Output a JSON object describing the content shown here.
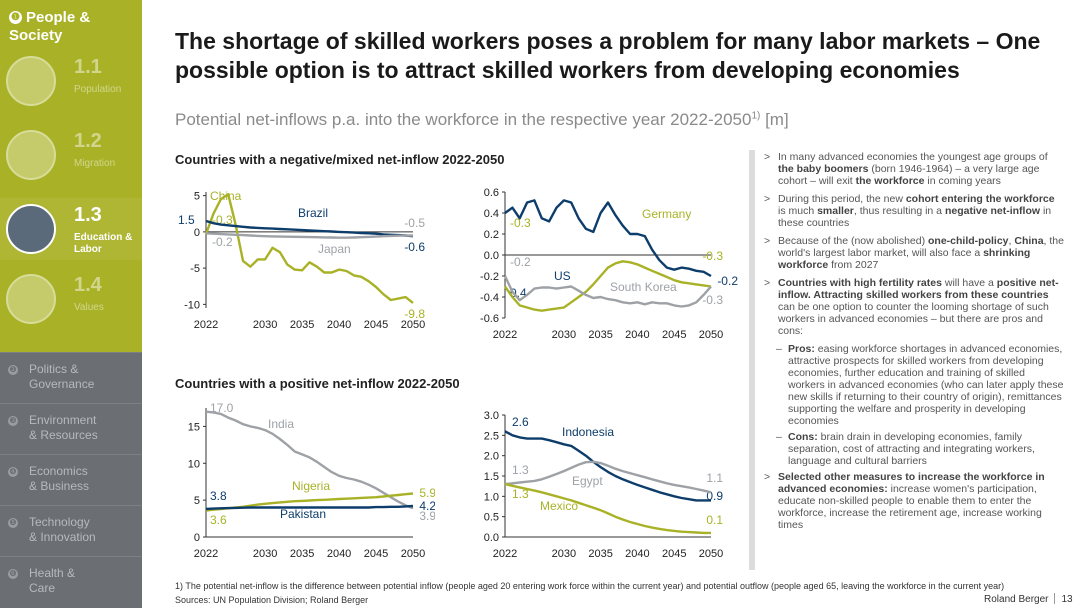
{
  "sidebar": {
    "section": {
      "num": "❶",
      "title_line1": "People &",
      "title_line2": "Society"
    },
    "sub_items": [
      {
        "num": "1.1",
        "label": "Population",
        "active": false
      },
      {
        "num": "1.2",
        "label": "Migration",
        "active": false
      },
      {
        "num": "1.3",
        "label": "Education & Labor",
        "active": true
      },
      {
        "num": "1.4",
        "label": "Values",
        "active": false
      }
    ],
    "sections": [
      {
        "num": "❷",
        "line1": "Politics &",
        "line2": "Governance"
      },
      {
        "num": "❸",
        "line1": "Environment",
        "line2": "& Resources"
      },
      {
        "num": "❹",
        "line1": "Economics",
        "line2": "& Business"
      },
      {
        "num": "❺",
        "line1": "Technology",
        "line2": "& Innovation"
      },
      {
        "num": "❻",
        "line1": "Health &",
        "line2": "Care"
      }
    ]
  },
  "title": "The shortage of skilled workers poses a problem for many labor markets – One possible option is to attract skilled workers from developing economies",
  "subtitle": "Potential net-inflows p.a. into the workforce in the respective year 2022-2050",
  "subtitle_sup": "1)",
  "subtitle_unit": " [m]",
  "negative_section_title": "Countries with a negative/mixed net-inflow 2022-2050",
  "positive_section_title": "Countries with a positive net-inflow 2022-2050",
  "colors": {
    "green": "#a9b227",
    "navy": "#0d3d6b",
    "gray": "#9ea2a6",
    "sidebar": "#6b6e72"
  },
  "chart_data": [
    {
      "type": "line",
      "x": [
        2022,
        2023,
        2024,
        2025,
        2026,
        2027,
        2028,
        2029,
        2030,
        2031,
        2032,
        2033,
        2034,
        2035,
        2036,
        2037,
        2038,
        2039,
        2040,
        2041,
        2042,
        2043,
        2044,
        2045,
        2046,
        2047,
        2048,
        2049,
        2050
      ],
      "xticks": [
        2022,
        2030,
        2035,
        2040,
        2045,
        2050
      ],
      "ylim": [
        -10.5,
        5.5
      ],
      "yticks": [
        5,
        0,
        -5,
        -10
      ],
      "series": [
        {
          "name": "China",
          "color": "#a9b227",
          "values": [
            -0.3,
            2.5,
            4.5,
            5.2,
            1.0,
            -4.0,
            -4.8,
            -3.8,
            -3.8,
            -2.2,
            -2.8,
            -4.5,
            -5.2,
            -5.3,
            -4.2,
            -4.8,
            -5.6,
            -5.6,
            -5.2,
            -5.4,
            -6.0,
            -6.2,
            -6.8,
            -7.6,
            -8.6,
            -9.4,
            -9.2,
            -9.0,
            -9.8
          ]
        },
        {
          "name": "Brazil",
          "color": "#0d3d6b",
          "values": [
            1.5,
            1.2,
            1.0,
            0.9,
            0.8,
            0.7,
            0.6,
            0.55,
            0.5,
            0.45,
            0.4,
            0.35,
            0.3,
            0.25,
            0.2,
            0.15,
            0.1,
            0.05,
            0.0,
            -0.05,
            -0.1,
            -0.15,
            -0.2,
            -0.25,
            -0.35,
            -0.4,
            -0.45,
            -0.5,
            -0.6
          ]
        },
        {
          "name": "Japan",
          "color": "#9ea2a6",
          "values": [
            -0.2,
            -0.25,
            -0.3,
            -0.35,
            -0.4,
            -0.45,
            -0.5,
            -0.55,
            -0.6,
            -0.62,
            -0.65,
            -0.66,
            -0.68,
            -0.7,
            -0.72,
            -0.74,
            -0.76,
            -0.78,
            -0.8,
            -0.8,
            -0.78,
            -0.74,
            -0.7,
            -0.65,
            -0.6,
            -0.56,
            -0.53,
            -0.51,
            -0.5
          ]
        }
      ],
      "labels": [
        {
          "series": "China",
          "text": "China"
        },
        {
          "series": "Brazil",
          "text": "Brazil"
        },
        {
          "series": "Japan",
          "text": "Japan"
        }
      ],
      "value_labels": {
        "start": [
          "-0.3",
          "1.5",
          "-0.2"
        ],
        "end": [
          "-9.8",
          "-0.6",
          "-0.5"
        ]
      }
    },
    {
      "type": "line",
      "x": [
        2022,
        2023,
        2024,
        2025,
        2026,
        2027,
        2028,
        2029,
        2030,
        2031,
        2032,
        2033,
        2034,
        2035,
        2036,
        2037,
        2038,
        2039,
        2040,
        2041,
        2042,
        2043,
        2044,
        2045,
        2046,
        2047,
        2048,
        2049,
        2050
      ],
      "xticks": [
        2022,
        2030,
        2035,
        2040,
        2045,
        2050
      ],
      "ylim": [
        -0.6,
        0.6
      ],
      "yticks": [
        0.6,
        0.4,
        0.2,
        0.0,
        -0.2,
        -0.4,
        -0.6
      ],
      "ytick_labels": [
        "0.6",
        "0.4",
        "0.2",
        "0.0",
        "-0.2",
        "-0.4",
        "-0.6"
      ],
      "series": [
        {
          "name": "US",
          "color": "#0d3d6b",
          "values": [
            0.4,
            0.45,
            0.35,
            0.5,
            0.52,
            0.35,
            0.32,
            0.45,
            0.52,
            0.5,
            0.35,
            0.25,
            0.22,
            0.4,
            0.5,
            0.38,
            0.28,
            0.2,
            0.2,
            0.18,
            0.05,
            -0.05,
            -0.12,
            -0.14,
            -0.12,
            -0.13,
            -0.15,
            -0.16,
            -0.2
          ]
        },
        {
          "name": "Germany",
          "color": "#a9b227",
          "values": [
            -0.3,
            -0.4,
            -0.48,
            -0.5,
            -0.52,
            -0.53,
            -0.52,
            -0.51,
            -0.5,
            -0.45,
            -0.4,
            -0.35,
            -0.28,
            -0.2,
            -0.12,
            -0.08,
            -0.06,
            -0.07,
            -0.09,
            -0.12,
            -0.15,
            -0.18,
            -0.21,
            -0.24,
            -0.26,
            -0.27,
            -0.28,
            -0.29,
            -0.3
          ]
        },
        {
          "name": "South Korea",
          "color": "#9ea2a6",
          "values": [
            -0.2,
            -0.35,
            -0.43,
            -0.38,
            -0.32,
            -0.31,
            -0.31,
            -0.32,
            -0.31,
            -0.3,
            -0.34,
            -0.38,
            -0.41,
            -0.4,
            -0.42,
            -0.43,
            -0.45,
            -0.46,
            -0.45,
            -0.47,
            -0.45,
            -0.46,
            -0.46,
            -0.48,
            -0.49,
            -0.48,
            -0.45,
            -0.38,
            -0.3
          ]
        }
      ],
      "labels": [
        {
          "series": "US",
          "text": "US"
        },
        {
          "series": "Germany",
          "text": "Germany"
        },
        {
          "series": "South Korea",
          "text": "South Korea"
        }
      ],
      "value_labels": {
        "start": [
          "0.4",
          "-0.3",
          "-0.2"
        ],
        "end": [
          "-0.2",
          "-0.3",
          "-0.3"
        ]
      }
    },
    {
      "type": "line",
      "x": [
        2022,
        2023,
        2024,
        2025,
        2026,
        2027,
        2028,
        2029,
        2030,
        2031,
        2032,
        2033,
        2034,
        2035,
        2036,
        2037,
        2038,
        2039,
        2040,
        2041,
        2042,
        2043,
        2044,
        2045,
        2046,
        2047,
        2048,
        2049,
        2050
      ],
      "xticks": [
        2022,
        2030,
        2035,
        2040,
        2045,
        2050
      ],
      "ylim": [
        0,
        17.5
      ],
      "yticks": [
        15,
        10,
        5,
        0
      ],
      "series": [
        {
          "name": "India",
          "color": "#9ea2a6",
          "values": [
            17.0,
            16.9,
            16.7,
            16.2,
            15.8,
            15.3,
            15.0,
            14.8,
            14.5,
            14.0,
            13.3,
            12.5,
            11.6,
            11.2,
            10.8,
            10.2,
            9.5,
            8.8,
            8.3,
            8.0,
            7.8,
            7.5,
            7.1,
            6.6,
            6.0,
            5.4,
            4.8,
            4.3,
            3.9
          ]
        },
        {
          "name": "Nigeria",
          "color": "#a9b227",
          "values": [
            3.6,
            3.7,
            3.8,
            3.9,
            4.0,
            4.1,
            4.25,
            4.4,
            4.5,
            4.6,
            4.7,
            4.78,
            4.85,
            4.9,
            4.95,
            5.0,
            5.05,
            5.1,
            5.15,
            5.2,
            5.25,
            5.3,
            5.35,
            5.4,
            5.5,
            5.6,
            5.7,
            5.8,
            5.9
          ]
        },
        {
          "name": "Pakistan",
          "color": "#0d3d6b",
          "values": [
            3.8,
            3.85,
            3.9,
            3.92,
            3.95,
            3.97,
            4.0,
            4.0,
            4.0,
            4.0,
            4.0,
            4.0,
            4.0,
            4.0,
            4.0,
            4.0,
            4.0,
            4.0,
            4.0,
            4.0,
            4.0,
            4.0,
            4.0,
            4.05,
            4.05,
            4.1,
            4.1,
            4.15,
            4.2
          ]
        }
      ],
      "labels": [
        {
          "series": "India",
          "text": "India"
        },
        {
          "series": "Nigeria",
          "text": "Nigeria"
        },
        {
          "series": "Pakistan",
          "text": "Pakistan"
        }
      ],
      "value_labels": {
        "start": [
          "17.0",
          "3.6",
          "3.8"
        ],
        "end": [
          "3.9",
          "5.9",
          "4.2"
        ]
      }
    },
    {
      "type": "line",
      "x": [
        2022,
        2023,
        2024,
        2025,
        2026,
        2027,
        2028,
        2029,
        2030,
        2031,
        2032,
        2033,
        2034,
        2035,
        2036,
        2037,
        2038,
        2039,
        2040,
        2041,
        2042,
        2043,
        2044,
        2045,
        2046,
        2047,
        2048,
        2049,
        2050
      ],
      "xticks": [
        2022,
        2030,
        2035,
        2040,
        2045,
        2050
      ],
      "ylim": [
        0,
        3.0
      ],
      "yticks": [
        3.0,
        2.5,
        2.0,
        1.5,
        1.0,
        0.5,
        0.0
      ],
      "ytick_labels": [
        "3.0",
        "2.5",
        "2.0",
        "1.5",
        "1.0",
        "0.5",
        "0.0"
      ],
      "series": [
        {
          "name": "Indonesia",
          "color": "#0d3d6b",
          "values": [
            2.6,
            2.5,
            2.45,
            2.42,
            2.42,
            2.42,
            2.38,
            2.33,
            2.28,
            2.24,
            2.12,
            2.0,
            1.85,
            1.72,
            1.6,
            1.5,
            1.42,
            1.35,
            1.28,
            1.22,
            1.16,
            1.1,
            1.05,
            1.0,
            0.96,
            0.93,
            0.9,
            0.9,
            0.9
          ]
        },
        {
          "name": "Egypt",
          "color": "#9ea2a6",
          "values": [
            1.3,
            1.32,
            1.34,
            1.36,
            1.38,
            1.42,
            1.48,
            1.55,
            1.62,
            1.7,
            1.78,
            1.84,
            1.85,
            1.82,
            1.75,
            1.68,
            1.62,
            1.57,
            1.52,
            1.47,
            1.42,
            1.37,
            1.32,
            1.28,
            1.25,
            1.22,
            1.18,
            1.14,
            1.1
          ]
        },
        {
          "name": "Mexico",
          "color": "#a9b227",
          "values": [
            1.3,
            1.26,
            1.22,
            1.18,
            1.14,
            1.1,
            1.05,
            1.0,
            0.95,
            0.9,
            0.84,
            0.78,
            0.72,
            0.66,
            0.58,
            0.5,
            0.43,
            0.37,
            0.32,
            0.27,
            0.23,
            0.2,
            0.17,
            0.15,
            0.13,
            0.12,
            0.11,
            0.1,
            0.1
          ]
        }
      ],
      "labels": [
        {
          "series": "Indonesia",
          "text": "Indonesia"
        },
        {
          "series": "Egypt",
          "text": "Egypt"
        },
        {
          "series": "Mexico",
          "text": "Mexico"
        }
      ],
      "value_labels": {
        "start": [
          "2.6",
          "1.3",
          "1.3"
        ],
        "end": [
          "0.9",
          "1.1",
          "0.1"
        ]
      }
    }
  ],
  "bullets": [
    {
      "marker": ">",
      "parts": [
        {
          "t": "In many advanced economies the youngest age groups of "
        },
        {
          "b": "the baby boomers"
        },
        {
          "t": " (born 1946-1964) – a very large age cohort – will exit "
        },
        {
          "b": "the workforce"
        },
        {
          "t": " in coming years"
        }
      ]
    },
    {
      "marker": ">",
      "parts": [
        {
          "t": "During this period, the new "
        },
        {
          "b": "cohort entering the workforce"
        },
        {
          "t": " is much "
        },
        {
          "b": "smaller"
        },
        {
          "t": ", thus resulting in a "
        },
        {
          "b": "negative net-inflow"
        },
        {
          "t": " in these countries"
        }
      ]
    },
    {
      "marker": ">",
      "parts": [
        {
          "t": "Because of the (now abolished) "
        },
        {
          "b": "one-child-policy"
        },
        {
          "t": ", "
        },
        {
          "b": "China"
        },
        {
          "t": ", the world's largest labor market, will also face a "
        },
        {
          "b": "shrinking workforce"
        },
        {
          "t": " from 2027"
        }
      ]
    },
    {
      "marker": ">",
      "parts": [
        {
          "b": "Countries with high fertility rates"
        },
        {
          "t": " will have a "
        },
        {
          "b": "positive net-inflow. Attracting skilled workers from these countries"
        },
        {
          "t": " can be one option to counter the looming shortage of such workers in advanced economies – but there are pros and cons:"
        }
      ]
    },
    {
      "marker": "–",
      "sub": true,
      "parts": [
        {
          "b": "Pros:"
        },
        {
          "t": " easing workforce shortages in advanced economies, attractive prospects for skilled workers from developing economies, further education and training of skilled workers in advanced economies (who can later apply these new skills if returning to their country of origin), remittances supporting the welfare and prosperity in developing economies"
        }
      ]
    },
    {
      "marker": "–",
      "sub": true,
      "parts": [
        {
          "b": "Cons:"
        },
        {
          "t": " brain drain in developing economies, family separation, cost of attracting and integrating workers, language and cultural barriers"
        }
      ]
    },
    {
      "marker": ">",
      "parts": [
        {
          "b": "Selected other measures to increase the workforce in advanced economies:"
        },
        {
          "t": " increase women's participation, educate non-skilled people to enable them to enter the workforce, increase the retirement age, increase working times"
        }
      ]
    }
  ],
  "footnote": "1) The potential net-inflow is the difference between potential inflow (people aged 20 entering work force within the current year) and potential outflow (people aged 65, leaving the workforce in the current year)",
  "sources": "Sources: UN Population Division; Roland Berger",
  "brand": "Roland Berger",
  "page_number": "13"
}
